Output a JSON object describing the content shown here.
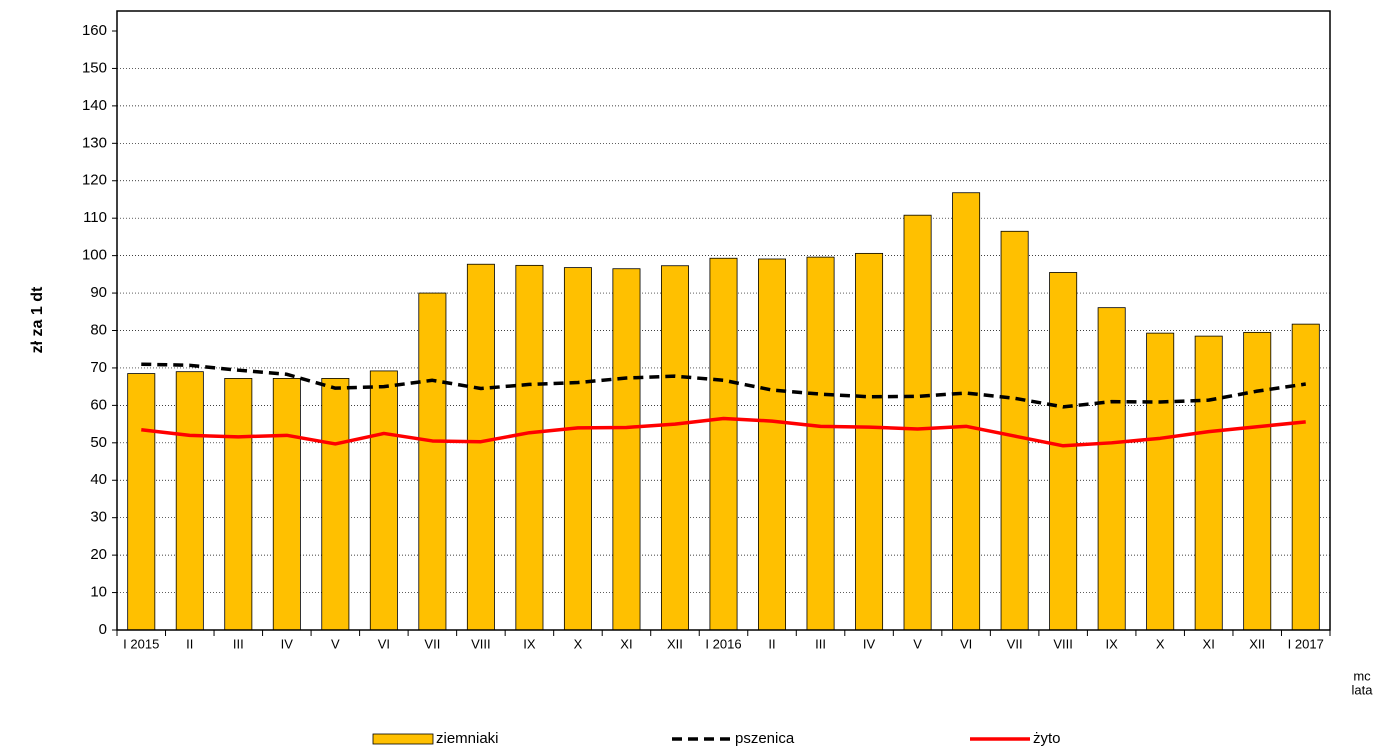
{
  "chart_data": {
    "type": "bar",
    "ylabel": "zł za 1 dt",
    "xlabel_lines": [
      "mc",
      "lata"
    ],
    "categories": [
      "I 2015",
      "II",
      "III",
      "IV",
      "V",
      "VI",
      "VII",
      "VIII",
      "IX",
      "X",
      "XI",
      "XII",
      "I 2016",
      "II",
      "III",
      "IV",
      "V",
      "VI",
      "VII",
      "VIII",
      "IX",
      "X",
      "XI",
      "XII",
      "I 2017"
    ],
    "series": [
      {
        "name": "ziemniaki",
        "type": "bar",
        "color": "#ffc000",
        "values": [
          68.5,
          69,
          67.2,
          67.2,
          67.2,
          69.2,
          90,
          97.7,
          97.4,
          96.8,
          96.5,
          97.3,
          99.3,
          99.1,
          99.6,
          100.6,
          110.8,
          116.8,
          106.5,
          95.5,
          86.1,
          79.3,
          78.5,
          79.5,
          81.7
        ]
      },
      {
        "name": "pszenica",
        "type": "line",
        "style": "dashed",
        "color": "#000000",
        "values": [
          71,
          70.7,
          69.4,
          68.3,
          64.6,
          65,
          66.7,
          64.5,
          65.6,
          66.1,
          67.3,
          67.8,
          66.7,
          64.1,
          63,
          62.3,
          62.4,
          63.3,
          61.9,
          59.6,
          61,
          60.9,
          61.4,
          63.8,
          65.7
        ]
      },
      {
        "name": "żyto",
        "type": "line",
        "style": "solid",
        "color": "#ff0000",
        "values": [
          53.5,
          52,
          51.6,
          52,
          49.7,
          52.5,
          50.5,
          50.3,
          52.7,
          54,
          54.1,
          55,
          56.5,
          55.8,
          54.4,
          54.2,
          53.7,
          54.4,
          51.8,
          49.2,
          50,
          51.2,
          53,
          54.3,
          55.6
        ]
      }
    ],
    "ylim": [
      0,
      160
    ],
    "yticks": [
      0,
      10,
      20,
      30,
      40,
      50,
      60,
      70,
      80,
      90,
      100,
      110,
      120,
      130,
      140,
      150,
      160
    ],
    "grid": true,
    "legend": "bottom"
  }
}
